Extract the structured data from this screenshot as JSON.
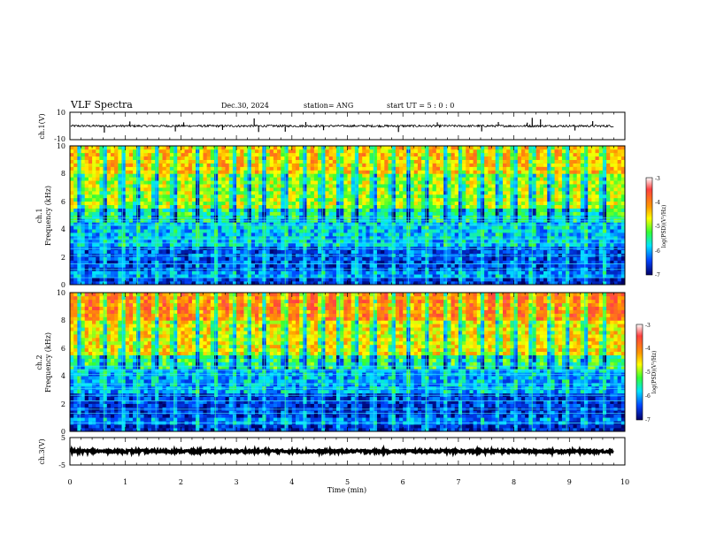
{
  "header": {
    "title": "VLF Spectra",
    "date": "Dec.30, 2024",
    "station": "station= ANG",
    "start": "start  UT  =   5 : 0  : 0"
  },
  "chart_data": [
    {
      "type": "line",
      "panel": "ch1-waveform",
      "ylabel": "ch.1(V)",
      "ytick_labels": [
        "10",
        "-10"
      ],
      "ylim": [
        -10,
        10
      ],
      "xlim": [
        0,
        10
      ],
      "baseline": 0,
      "line_extent_min": 9.8,
      "spikes": [
        {
          "t": 0.62,
          "v": -2.2
        },
        {
          "t": 1.08,
          "v": 1.5
        },
        {
          "t": 1.9,
          "v": -1.8
        },
        {
          "t": 2.05,
          "v": 1.2
        },
        {
          "t": 2.75,
          "v": -1.3
        },
        {
          "t": 3.32,
          "v": 2.5
        },
        {
          "t": 3.4,
          "v": -2.0
        },
        {
          "t": 3.88,
          "v": -1.9
        },
        {
          "t": 4.25,
          "v": 1.3
        },
        {
          "t": 4.57,
          "v": -1.4
        },
        {
          "t": 5.92,
          "v": -2.0
        },
        {
          "t": 6.62,
          "v": 1.2
        },
        {
          "t": 7.42,
          "v": -1.8
        },
        {
          "t": 7.72,
          "v": 1.3
        },
        {
          "t": 8.24,
          "v": 1.1
        },
        {
          "t": 8.33,
          "v": 2.7
        },
        {
          "t": 8.48,
          "v": 2.2
        },
        {
          "t": 9.1,
          "v": -1.5
        },
        {
          "t": 9.42,
          "v": 1.6
        }
      ]
    },
    {
      "type": "heatmap",
      "panel": "ch1-spectrogram",
      "ylabel": "ch.1",
      "ylabel2": "Frequency  (kHz)",
      "ytick_labels": [
        "0",
        "2",
        "4",
        "6",
        "8",
        "10"
      ],
      "ylim": [
        0,
        10
      ],
      "xlim": [
        0,
        10
      ],
      "colorbar": {
        "label": "log(PSD)(V²/Hz)",
        "range": [
          -7,
          -3
        ],
        "tick_labels": [
          "-3",
          "-4",
          "-5",
          "-6",
          "-7"
        ]
      },
      "band_levels": [
        {
          "f": [
            0.0,
            0.6
          ],
          "level": -6.6
        },
        {
          "f": [
            0.6,
            1.0
          ],
          "level": -6.2
        },
        {
          "f": [
            1.0,
            2.8
          ],
          "level": -6.5
        },
        {
          "f": [
            2.8,
            4.6
          ],
          "level": -6.0
        },
        {
          "f": [
            4.6,
            5.5
          ],
          "level": -5.4
        },
        {
          "f": [
            5.5,
            8.0
          ],
          "level": -4.8
        },
        {
          "f": [
            8.0,
            10.0
          ],
          "level": -4.3
        }
      ],
      "tone_lines_khz": [
        0.5,
        1.1,
        1.5,
        2.1,
        2.6,
        3.0,
        3.3,
        4.3,
        4.6,
        4.8
      ],
      "sferic_times_min": [
        0.18,
        0.62,
        0.95,
        1.22,
        1.55,
        1.88,
        2.3,
        2.62,
        2.95,
        3.22,
        3.5,
        3.88,
        4.22,
        4.55,
        4.86,
        5.15,
        5.48,
        5.82,
        6.1,
        6.42,
        6.78,
        7.05,
        7.42,
        7.72,
        8.02,
        8.33,
        8.65,
        8.95,
        9.28,
        9.62
      ]
    },
    {
      "type": "heatmap",
      "panel": "ch2-spectrogram",
      "ylabel": "ch.2",
      "ylabel2": "Frequency  (kHz)",
      "ytick_labels": [
        "0",
        "2",
        "4",
        "6",
        "8",
        "10"
      ],
      "ylim": [
        0,
        10
      ],
      "xlim": [
        0,
        10
      ],
      "colorbar": {
        "label": "log(PSD)(V²/Hz)",
        "range": [
          -7,
          -3
        ],
        "tick_labels": [
          "-3",
          "-4",
          "-5",
          "-6",
          "-7"
        ]
      },
      "band_levels": [
        {
          "f": [
            0.0,
            0.6
          ],
          "level": -6.7
        },
        {
          "f": [
            0.6,
            1.0
          ],
          "level": -6.3
        },
        {
          "f": [
            1.0,
            2.8
          ],
          "level": -6.6
        },
        {
          "f": [
            2.8,
            4.6
          ],
          "level": -6.1
        },
        {
          "f": [
            4.6,
            5.5
          ],
          "level": -5.3
        },
        {
          "f": [
            5.5,
            8.0
          ],
          "level": -4.5
        },
        {
          "f": [
            8.0,
            10.0
          ],
          "level": -3.9
        }
      ],
      "tone_lines_khz": [
        0.6,
        1.3,
        1.6,
        2.2,
        2.6,
        3.1,
        3.4,
        4.1,
        4.4,
        4.7
      ],
      "sferic_times_min": [
        0.18,
        0.62,
        0.95,
        1.22,
        1.55,
        1.88,
        2.3,
        2.62,
        2.95,
        3.22,
        3.5,
        3.88,
        4.22,
        4.55,
        4.86,
        5.15,
        5.48,
        5.82,
        6.1,
        6.42,
        6.78,
        7.05,
        7.42,
        7.72,
        8.02,
        8.33,
        8.65,
        8.95,
        9.28,
        9.62
      ]
    },
    {
      "type": "line",
      "panel": "ch3-waveform",
      "ylabel": "ch.3(V)",
      "ytick_labels": [
        "5",
        "-5"
      ],
      "ylim": [
        -5,
        5
      ],
      "xlim": [
        0,
        10
      ],
      "baseline": 0,
      "line_extent_min": 9.8,
      "xlabel": "Time  (min)",
      "xtick_labels": [
        "0",
        "1",
        "2",
        "3",
        "4",
        "5",
        "6",
        "7",
        "8",
        "9",
        "10"
      ]
    }
  ]
}
